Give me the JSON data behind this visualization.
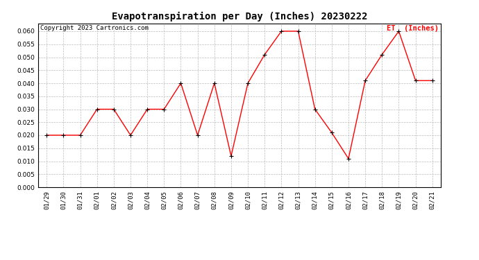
{
  "title": "Evapotranspiration per Day (Inches) 20230222",
  "copyright": "Copyright 2023 Cartronics.com",
  "legend_label": "ET  (Inches)",
  "dates": [
    "01/29",
    "01/30",
    "01/31",
    "02/01",
    "02/02",
    "02/03",
    "02/04",
    "02/05",
    "02/06",
    "02/07",
    "02/08",
    "02/09",
    "02/10",
    "02/11",
    "02/12",
    "02/13",
    "02/14",
    "02/15",
    "02/16",
    "02/17",
    "02/18",
    "02/19",
    "02/20",
    "02/21"
  ],
  "values": [
    0.02,
    0.02,
    0.02,
    0.03,
    0.03,
    0.02,
    0.03,
    0.03,
    0.04,
    0.02,
    0.04,
    0.012,
    0.04,
    0.051,
    0.06,
    0.06,
    0.03,
    0.021,
    0.011,
    0.041,
    0.051,
    0.06,
    0.041,
    0.041
  ],
  "ylim": [
    0.0,
    0.063
  ],
  "yticks": [
    0.0,
    0.005,
    0.01,
    0.015,
    0.02,
    0.025,
    0.03,
    0.035,
    0.04,
    0.045,
    0.05,
    0.055,
    0.06
  ],
  "line_color": "red",
  "marker_color": "black",
  "background_color": "#ffffff",
  "grid_color": "#bbbbbb",
  "title_fontsize": 10,
  "copyright_fontsize": 6.5,
  "legend_fontsize": 7.5,
  "tick_fontsize": 6.5,
  "fig_width": 6.9,
  "fig_height": 3.75,
  "dpi": 100
}
